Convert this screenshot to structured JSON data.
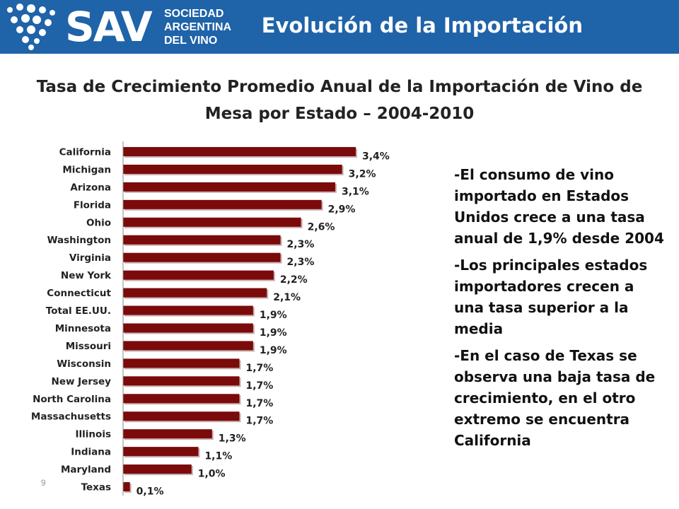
{
  "header": {
    "logo_text": "SAV",
    "logo_org_lines": [
      "SOCIEDAD",
      "ARGENTINA",
      "DEL VINO"
    ],
    "title": "Evolución de la Importación"
  },
  "colors": {
    "header_bg": "#1f63a9",
    "bar": "#7b0a0a",
    "logo_dots": "#ffffff"
  },
  "chart_data": {
    "type": "bar",
    "orientation": "horizontal",
    "title_lines": [
      "Tasa de Crecimiento Promedio Anual de la Importación de Vino de",
      "Mesa por Estado – 2004-2010"
    ],
    "categories": [
      "California",
      "Michigan",
      "Arizona",
      "Florida",
      "Ohio",
      "Washington",
      "Virginia",
      "New York",
      "Connecticut",
      "Total EE.UU.",
      "Minnesota",
      "Missouri",
      "Wisconsin",
      "New Jersey",
      "North Carolina",
      "Massachusetts",
      "Illinois",
      "Indiana",
      "Maryland",
      "Texas"
    ],
    "values": [
      3.4,
      3.2,
      3.1,
      2.9,
      2.6,
      2.3,
      2.3,
      2.2,
      2.1,
      1.9,
      1.9,
      1.9,
      1.7,
      1.7,
      1.7,
      1.7,
      1.3,
      1.1,
      1.0,
      0.1
    ],
    "data_labels": [
      "3,4%",
      "3,2%",
      "3,1%",
      "2,9%",
      "2,6%",
      "2,3%",
      "2,3%",
      "2,2%",
      "2,1%",
      "1,9%",
      "1,9%",
      "1,9%",
      "1,7%",
      "1,7%",
      "1,7%",
      "1,7%",
      "1,3%",
      "1,1%",
      "1,0%",
      "0,1%"
    ],
    "xlim": [
      0,
      3.6
    ],
    "grid": false,
    "legend": "none"
  },
  "bullets": [
    "-El consumo de vino importado en Estados Unidos crece a una tasa anual de 1,9% desde 2004",
    "-Los principales  estados importadores crecen a una tasa superior a la media",
    "-En el caso de Texas se observa una baja tasa de crecimiento, en el otro extremo se encuentra California"
  ],
  "page_number": "9"
}
